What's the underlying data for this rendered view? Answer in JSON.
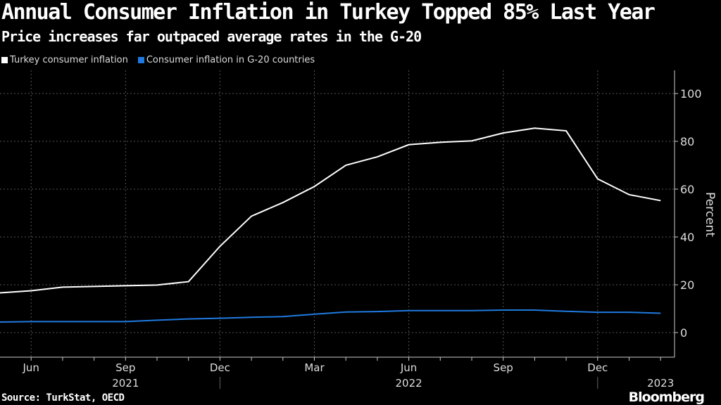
{
  "chart_data": {
    "type": "line",
    "title": "Annual Consumer Inflation in Turkey Topped 85% Last Year",
    "subtitle": "Price increases far outpaced average rates in the G-20",
    "ylabel": "Percent",
    "ylim": [
      -10,
      110
    ],
    "yticks": [
      0,
      20,
      40,
      60,
      80,
      100
    ],
    "x": [
      "2021-05",
      "2021-06",
      "2021-07",
      "2021-08",
      "2021-09",
      "2021-10",
      "2021-11",
      "2021-12",
      "2022-01",
      "2022-02",
      "2022-03",
      "2022-04",
      "2022-05",
      "2022-06",
      "2022-07",
      "2022-08",
      "2022-09",
      "2022-10",
      "2022-11",
      "2022-12",
      "2023-01",
      "2023-02"
    ],
    "xtick_labels": [
      {
        "i": 1,
        "label": "Jun"
      },
      {
        "i": 4,
        "label": "Sep"
      },
      {
        "i": 7,
        "label": "Dec"
      },
      {
        "i": 10,
        "label": "Mar"
      },
      {
        "i": 13,
        "label": "Jun"
      },
      {
        "i": 16,
        "label": "Sep"
      },
      {
        "i": 19,
        "label": "Dec"
      }
    ],
    "year_labels": [
      {
        "i": 4,
        "label": "2021"
      },
      {
        "i": 13,
        "label": "2022"
      },
      {
        "i": 21,
        "label": "2023"
      }
    ],
    "series": [
      {
        "name": "Turkey consumer inflation",
        "color": "#ffffff",
        "values": [
          16.6,
          17.5,
          19.0,
          19.3,
          19.6,
          19.9,
          21.3,
          36.1,
          48.7,
          54.4,
          61.1,
          70.0,
          73.5,
          78.6,
          79.6,
          80.2,
          83.5,
          85.5,
          84.4,
          64.3,
          57.7,
          55.2
        ]
      },
      {
        "name": "Consumer inflation in G-20 countries",
        "color": "#1f7ae0",
        "values": [
          4.4,
          4.6,
          4.6,
          4.6,
          4.6,
          5.2,
          5.7,
          6.0,
          6.4,
          6.7,
          7.7,
          8.6,
          8.8,
          9.2,
          9.2,
          9.2,
          9.4,
          9.4,
          8.9,
          8.5,
          8.5,
          8.1
        ]
      }
    ],
    "grid": true,
    "legend": "top-left"
  },
  "source": "Source: TurkStat, OECD",
  "brand": "Bloomberg"
}
